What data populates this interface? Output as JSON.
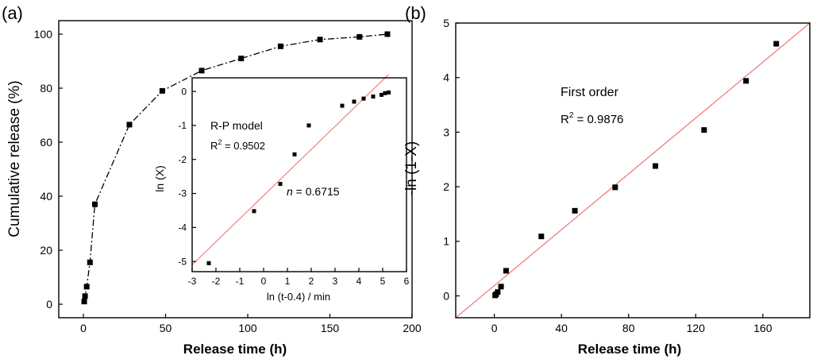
{
  "chart_data": [
    {
      "id": "a",
      "panel_label": "(a)",
      "type": "line",
      "title": "",
      "xlabel": "Release time (h)",
      "ylabel": "Cumulative release (%)",
      "xlim": [
        -15,
        200
      ],
      "ylim": [
        -5,
        105
      ],
      "xticks": [
        0,
        50,
        100,
        150,
        200
      ],
      "yticks": [
        0,
        20,
        40,
        60,
        80,
        100
      ],
      "grid": false,
      "series": [
        {
          "name": "Cumulative release",
          "style": "dash-dot with square markers",
          "x": [
            0.5,
            1,
            2,
            4,
            7,
            28,
            48,
            72,
            96,
            120,
            144,
            168,
            185
          ],
          "y": [
            1,
            3,
            6.5,
            15.5,
            37,
            66.5,
            79,
            86.5,
            91,
            95.5,
            98,
            99,
            100
          ]
        }
      ],
      "inset": {
        "type": "scatter",
        "xlabel": "ln (t-0.4) / min",
        "ylabel": "ln (X)",
        "xlim": [
          -3,
          6
        ],
        "ylim": [
          -5.3,
          0.4
        ],
        "xticks": [
          -3,
          -2,
          -1,
          0,
          1,
          2,
          3,
          4,
          5,
          6
        ],
        "yticks": [
          0,
          -1,
          -2,
          -3,
          -4,
          -5
        ],
        "points": {
          "x": [
            -2.3,
            -0.4,
            0.7,
            1.3,
            1.9,
            3.3,
            3.8,
            4.2,
            4.6,
            4.95,
            5.1,
            5.25
          ],
          "y": [
            -5.05,
            -3.52,
            -2.72,
            -1.85,
            -1.0,
            -0.42,
            -0.3,
            -0.21,
            -0.15,
            -0.1,
            -0.05,
            -0.03
          ]
        },
        "fit": {
          "x": [
            -3,
            5.25
          ],
          "y": [
            -5.1,
            0.5
          ],
          "color": "#f08080"
        },
        "annotations": {
          "model": "R-P model",
          "r2_label": "R",
          "r2_sup": "2",
          "r2_value": " = 0.9502",
          "n_label": "n",
          "n_value": " = 0.6715"
        }
      }
    },
    {
      "id": "b",
      "panel_label": "(b)",
      "type": "scatter",
      "title": "",
      "xlabel": "Release time (h)",
      "ylabel": "-ln (1-X)",
      "xlim": [
        -23,
        188
      ],
      "ylim": [
        -0.4,
        5
      ],
      "xticks": [
        0,
        40,
        80,
        120,
        160
      ],
      "yticks": [
        0,
        1,
        2,
        3,
        4,
        5
      ],
      "grid": false,
      "points": {
        "x": [
          0.5,
          1,
          2,
          4,
          7,
          28,
          48,
          72,
          96,
          125,
          150,
          168
        ],
        "y": [
          0.01,
          0.03,
          0.07,
          0.17,
          0.46,
          1.09,
          1.56,
          1.99,
          2.38,
          3.04,
          3.94,
          4.62
        ]
      },
      "fit": {
        "x": [
          -23,
          188
        ],
        "y": [
          -0.4,
          5.0
        ],
        "color": "#f08080"
      },
      "annotations": {
        "model": "First order",
        "r2_label": "R",
        "r2_sup": "2",
        "r2_value": " = 0.9876"
      }
    }
  ]
}
